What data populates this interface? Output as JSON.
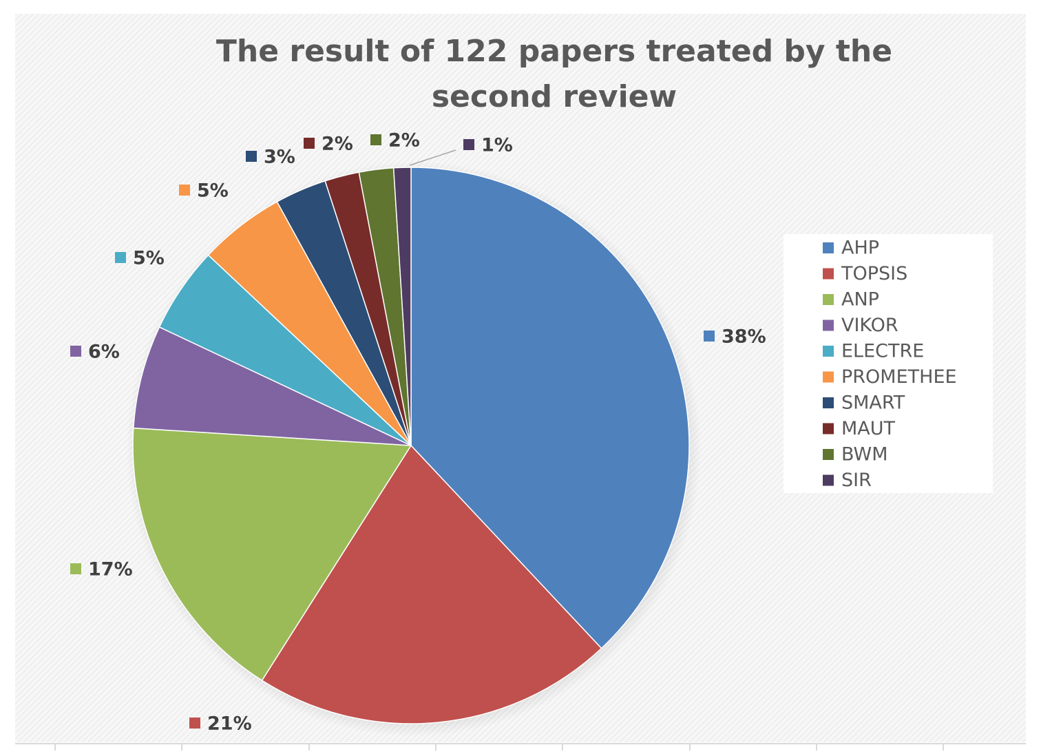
{
  "chart_data": {
    "type": "pie",
    "title": "The result of 122 papers treated by the second review",
    "categories": [
      "AHP",
      "TOPSIS",
      "ANP",
      "VIKOR",
      "ELECTRE",
      "PROMETHEE",
      "SMART",
      "MAUT",
      "BWM",
      "SIR"
    ],
    "values": [
      38,
      21,
      17,
      6,
      5,
      5,
      3,
      2,
      2,
      1
    ],
    "value_labels": [
      "38%",
      "21%",
      "17%",
      "6%",
      "5%",
      "5%",
      "3%",
      "2%",
      "2%",
      "1%"
    ],
    "colors": [
      "#4f81bd",
      "#c0504d",
      "#9bbb59",
      "#8064a2",
      "#4bacc6",
      "#f79646",
      "#2c4d75",
      "#772c2a",
      "#5f7530",
      "#4d3b62"
    ],
    "legend": "right"
  }
}
